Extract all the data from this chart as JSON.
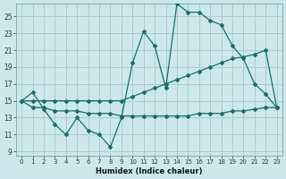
{
  "xlabel": "Humidex (Indice chaleur)",
  "background_color": "#cce8ec",
  "grid_color": "#aacccc",
  "line_color": "#1a6e6a",
  "xlim": [
    -0.5,
    23.5
  ],
  "ylim": [
    8.5,
    26.5
  ],
  "xticks": [
    0,
    1,
    2,
    3,
    4,
    5,
    6,
    7,
    8,
    9,
    10,
    11,
    12,
    13,
    14,
    15,
    16,
    17,
    18,
    19,
    20,
    21,
    22,
    23
  ],
  "yticks": [
    9,
    11,
    13,
    15,
    17,
    19,
    21,
    23,
    25
  ],
  "line1_x": [
    0,
    1,
    2,
    3,
    4,
    5,
    6,
    7,
    8,
    9,
    10,
    11,
    12,
    13,
    14,
    15,
    16,
    17,
    18,
    19,
    20,
    21,
    22,
    23
  ],
  "line1_y": [
    15.0,
    16.0,
    14.0,
    12.2,
    11.0,
    13.0,
    11.5,
    11.0,
    9.5,
    13.0,
    19.5,
    23.2,
    21.5,
    16.5,
    26.5,
    25.5,
    25.5,
    24.5,
    24.0,
    21.5,
    20.0,
    17.0,
    15.8,
    14.2
  ],
  "line2_x": [
    0,
    1,
    2,
    3,
    4,
    5,
    6,
    7,
    8,
    9,
    10,
    11,
    12,
    13,
    14,
    15,
    16,
    17,
    18,
    19,
    20,
    21,
    22,
    23
  ],
  "line2_y": [
    15.0,
    15.0,
    15.0,
    15.0,
    15.0,
    15.0,
    15.0,
    15.0,
    15.0,
    15.0,
    15.5,
    16.0,
    16.5,
    17.0,
    17.5,
    18.0,
    18.5,
    19.0,
    19.5,
    20.0,
    20.2,
    20.5,
    21.0,
    14.2
  ],
  "line3_x": [
    0,
    1,
    2,
    3,
    4,
    5,
    6,
    7,
    8,
    9,
    10,
    11,
    12,
    13,
    14,
    15,
    16,
    17,
    18,
    19,
    20,
    21,
    22,
    23
  ],
  "line3_y": [
    15.0,
    14.2,
    14.2,
    13.8,
    13.8,
    13.8,
    13.5,
    13.5,
    13.5,
    13.2,
    13.2,
    13.2,
    13.2,
    13.2,
    13.2,
    13.2,
    13.5,
    13.5,
    13.5,
    13.8,
    13.8,
    14.0,
    14.2,
    14.2
  ]
}
